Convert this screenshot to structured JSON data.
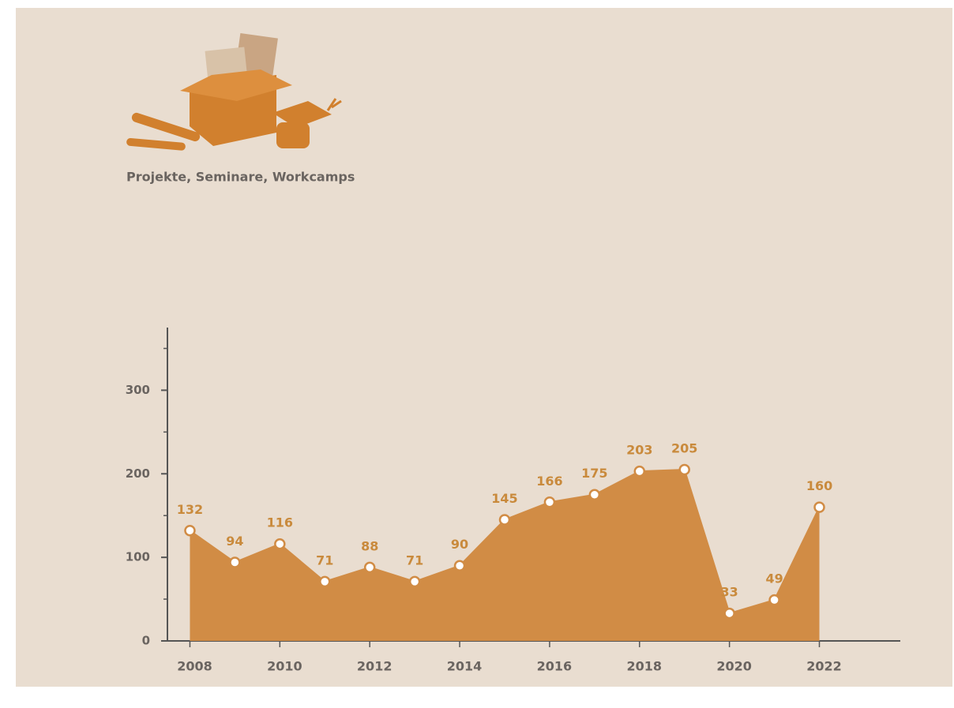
{
  "chart_data": {
    "type": "area",
    "title": "Projekte, Seminare, Workcamps",
    "x": [
      2008,
      2009,
      2010,
      2011,
      2012,
      2013,
      2014,
      2015,
      2016,
      2017,
      2018,
      2019,
      2020,
      2021,
      2022
    ],
    "values": [
      132,
      94,
      116,
      71,
      88,
      71,
      90,
      145,
      166,
      175,
      203,
      205,
      33,
      49,
      160
    ],
    "color": "#d18c45",
    "xlim": [
      2007.5,
      2023.8
    ],
    "xticks": [
      2008,
      2010,
      2012,
      2014,
      2016,
      2018,
      2020,
      2022
    ],
    "ylim": [
      0,
      375
    ],
    "yticks": [
      0,
      100,
      200,
      300
    ],
    "yminorticks": [
      50,
      150,
      250,
      350
    ],
    "grid": false
  }
}
